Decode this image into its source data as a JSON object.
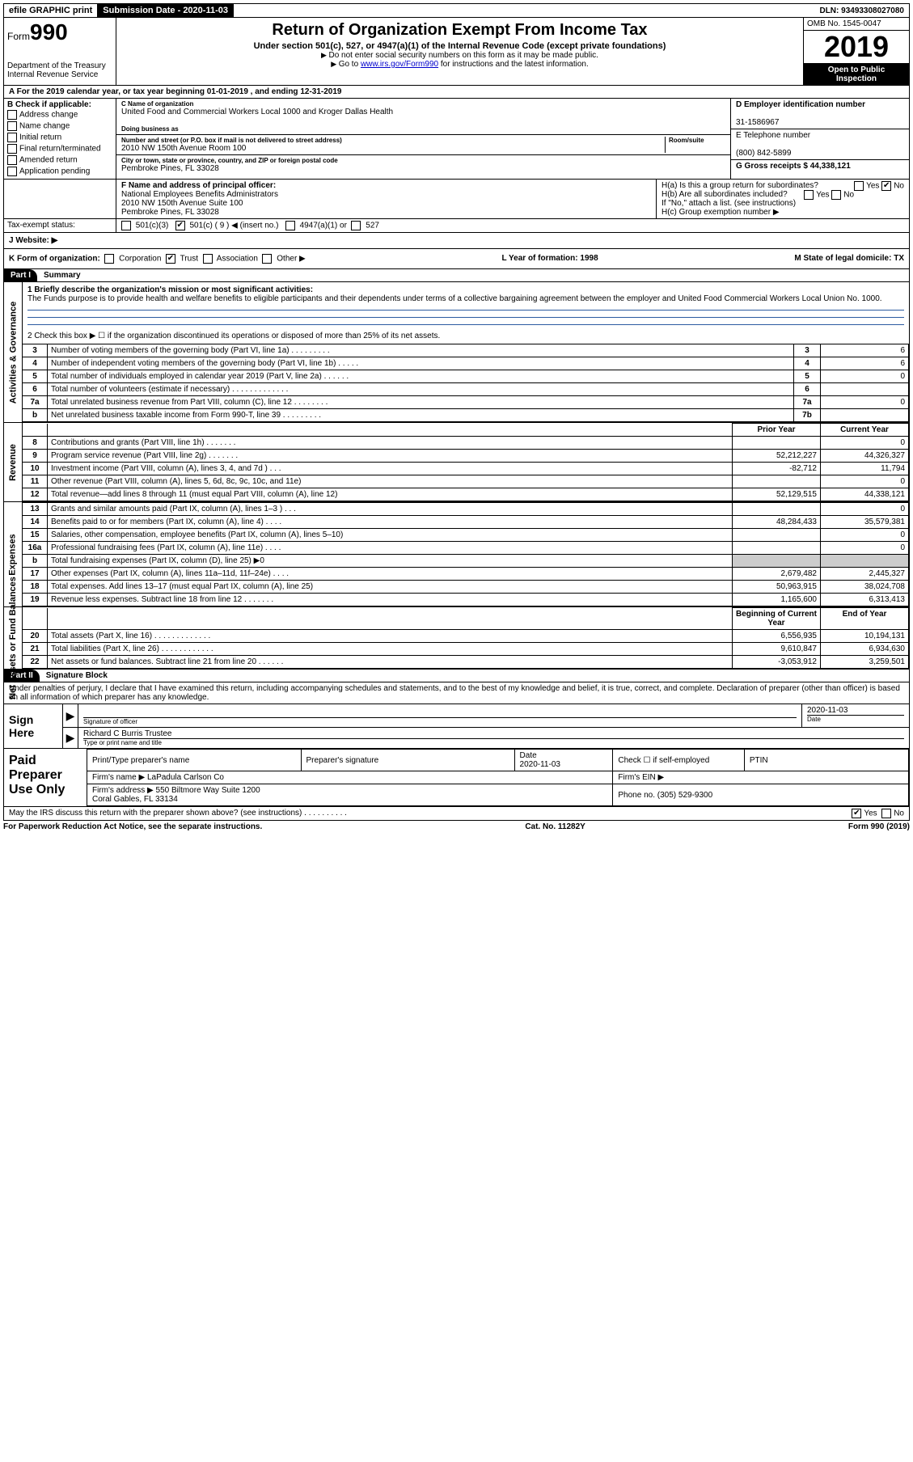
{
  "topbar": {
    "efile": "efile GRAPHIC print",
    "submission_label": "Submission Date - 2020-11-03",
    "dln": "DLN: 93493308027080"
  },
  "header": {
    "form_word": "Form",
    "form_num": "990",
    "dept": "Department of the Treasury\nInternal Revenue Service",
    "title": "Return of Organization Exempt From Income Tax",
    "subtitle": "Under section 501(c), 527, or 4947(a)(1) of the Internal Revenue Code (except private foundations)",
    "note1": "Do not enter social security numbers on this form as it may be made public.",
    "note2_pre": "Go to ",
    "note2_link": "www.irs.gov/Form990",
    "note2_post": " for instructions and the latest information.",
    "omb": "OMB No. 1545-0047",
    "year": "2019",
    "open": "Open to Public Inspection"
  },
  "row_a": "A For the 2019 calendar year, or tax year beginning 01-01-2019   , and ending 12-31-2019",
  "section_b": {
    "label": "B Check if applicable:",
    "items": [
      "Address change",
      "Name change",
      "Initial return",
      "Final return/terminated",
      "Amended return",
      "Application pending"
    ],
    "c_label": "C Name of organization",
    "c_value": "United Food and Commercial Workers Local 1000 and Kroger Dallas Health",
    "dba_label": "Doing business as",
    "addr_label": "Number and street (or P.O. box if mail is not delivered to street address)",
    "room_label": "Room/suite",
    "addr_value": "2010 NW 150th Avenue Room 100",
    "city_label": "City or town, state or province, country, and ZIP or foreign postal code",
    "city_value": "Pembroke Pines, FL  33028",
    "d_label": "D Employer identification number",
    "d_value": "31-1586967",
    "e_label": "E Telephone number",
    "e_value": "(800) 842-5899",
    "g_label": "G Gross receipts $ 44,338,121"
  },
  "section_f": {
    "f_label": "F  Name and address of principal officer:",
    "f_value": "National Employees Benefits Administrators\n2010 NW 150th Avenue Suite 100\nPembroke Pines, FL  33028",
    "tax_label": "Tax-exempt status:",
    "tax_501c3": "501(c)(3)",
    "tax_501c": "501(c) ( 9 ) ◀ (insert no.)",
    "tax_4947": "4947(a)(1) or",
    "tax_527": "527",
    "ha": "H(a)  Is this a group return for subordinates?",
    "hb": "H(b)  Are all subordinates included?",
    "hb_note": "If \"No,\" attach a list. (see instructions)",
    "hc": "H(c)  Group exemption number ▶",
    "yes": "Yes",
    "no": "No"
  },
  "row_j": "J  Website: ▶",
  "row_k": {
    "k_label": "K Form of organization:",
    "opts": [
      "Corporation",
      "Trust",
      "Association",
      "Other ▶"
    ],
    "l": "L Year of formation: 1998",
    "m": "M State of legal domicile: TX"
  },
  "part1": {
    "tab": "Part I",
    "title": "Summary",
    "line1_label": "1  Briefly describe the organization's mission or most significant activities:",
    "mission": "The Funds purpose is to provide health and welfare benefits to eligible participants and their dependents under terms of a collective bargaining agreement between the employer and United Food Commercial Workers Local Union No. 1000.",
    "line2": "2   Check this box ▶ ☐  if the organization discontinued its operations or disposed of more than 25% of its net assets."
  },
  "governance_rows": [
    {
      "n": "3",
      "d": "Number of voting members of the governing body (Part VI, line 1a)  .   .   .   .   .   .   .   .   .",
      "b": "3",
      "v": "6"
    },
    {
      "n": "4",
      "d": "Number of independent voting members of the governing body (Part VI, line 1b)  .   .   .   .   .",
      "b": "4",
      "v": "6"
    },
    {
      "n": "5",
      "d": "Total number of individuals employed in calendar year 2019 (Part V, line 2a)  .   .   .   .   .   .",
      "b": "5",
      "v": "0"
    },
    {
      "n": "6",
      "d": "Total number of volunteers (estimate if necessary)   .   .   .   .   .   .   .   .   .   .   .   .   .",
      "b": "6",
      "v": ""
    },
    {
      "n": "7a",
      "d": "Total unrelated business revenue from Part VIII, column (C), line 12  .   .   .   .   .   .   .   .",
      "b": "7a",
      "v": "0"
    },
    {
      "n": "b",
      "d": "Net unrelated business taxable income from Form 990-T, line 39   .   .   .   .   .   .   .   .   .",
      "b": "7b",
      "v": ""
    }
  ],
  "col_headers": {
    "prior": "Prior Year",
    "current": "Current Year"
  },
  "revenue_rows": [
    {
      "n": "8",
      "d": "Contributions and grants (Part VIII, line 1h)   .   .   .   .   .   .   .",
      "p": "",
      "c": "0"
    },
    {
      "n": "9",
      "d": "Program service revenue (Part VIII, line 2g)   .   .   .   .   .   .   .",
      "p": "52,212,227",
      "c": "44,326,327"
    },
    {
      "n": "10",
      "d": "Investment income (Part VIII, column (A), lines 3, 4, and 7d )   .   .   .",
      "p": "-82,712",
      "c": "11,794"
    },
    {
      "n": "11",
      "d": "Other revenue (Part VIII, column (A), lines 5, 6d, 8c, 9c, 10c, and 11e)",
      "p": "",
      "c": "0"
    },
    {
      "n": "12",
      "d": "Total revenue—add lines 8 through 11 (must equal Part VIII, column (A), line 12)",
      "p": "52,129,515",
      "c": "44,338,121"
    }
  ],
  "expense_rows": [
    {
      "n": "13",
      "d": "Grants and similar amounts paid (Part IX, column (A), lines 1–3 )  .   .   .",
      "p": "",
      "c": "0"
    },
    {
      "n": "14",
      "d": "Benefits paid to or for members (Part IX, column (A), line 4)  .   .   .   .",
      "p": "48,284,433",
      "c": "35,579,381"
    },
    {
      "n": "15",
      "d": "Salaries, other compensation, employee benefits (Part IX, column (A), lines 5–10)",
      "p": "",
      "c": "0"
    },
    {
      "n": "16a",
      "d": "Professional fundraising fees (Part IX, column (A), line 11e)  .   .   .   .",
      "p": "",
      "c": "0"
    },
    {
      "n": "b",
      "d": "Total fundraising expenses (Part IX, column (D), line 25) ▶0",
      "p": "shade",
      "c": "shade"
    },
    {
      "n": "17",
      "d": "Other expenses (Part IX, column (A), lines 11a–11d, 11f–24e)   .   .   .   .",
      "p": "2,679,482",
      "c": "2,445,327"
    },
    {
      "n": "18",
      "d": "Total expenses. Add lines 13–17 (must equal Part IX, column (A), line 25)",
      "p": "50,963,915",
      "c": "38,024,708"
    },
    {
      "n": "19",
      "d": "Revenue less expenses. Subtract line 18 from line 12 .   .   .   .   .   .   .",
      "p": "1,165,600",
      "c": "6,313,413"
    }
  ],
  "net_headers": {
    "begin": "Beginning of Current Year",
    "end": "End of Year"
  },
  "net_rows": [
    {
      "n": "20",
      "d": "Total assets (Part X, line 16)  .   .   .   .   .   .   .   .   .   .   .   .   .",
      "p": "6,556,935",
      "c": "10,194,131"
    },
    {
      "n": "21",
      "d": "Total liabilities (Part X, line 26)  .   .   .   .   .   .   .   .   .   .   .   .",
      "p": "9,610,847",
      "c": "6,934,630"
    },
    {
      "n": "22",
      "d": "Net assets or fund balances. Subtract line 21 from line 20 .   .   .   .   .   .",
      "p": "-3,053,912",
      "c": "3,259,501"
    }
  ],
  "part2": {
    "tab": "Part II",
    "title": "Signature Block",
    "decl": "Under penalties of perjury, I declare that I have examined this return, including accompanying schedules and statements, and to the best of my knowledge and belief, it is true, correct, and complete. Declaration of preparer (other than officer) is based on all information of which preparer has any knowledge."
  },
  "sign": {
    "here": "Sign Here",
    "sig_label": "Signature of officer",
    "date": "2020-11-03",
    "date_label": "Date",
    "name": "Richard C Burris  Trustee",
    "name_label": "Type or print name and title"
  },
  "prep": {
    "label": "Paid Preparer Use Only",
    "r1": [
      "Print/Type preparer's name",
      "Preparer's signature",
      "Date\n2020-11-03",
      "Check ☐ if self-employed",
      "PTIN"
    ],
    "r2_a": "Firm's name    ▶ LaPadula Carlson Co",
    "r2_b": "Firm's EIN ▶",
    "r3_a": "Firm's address ▶ 550 Biltmore Way Suite 1200\n                            Coral Gables, FL  33134",
    "r3_b": "Phone no. (305) 529-9300"
  },
  "footer": {
    "discuss": "May the IRS discuss this return with the preparer shown above? (see instructions)   .   .   .   .   .   .   .   .   .   .",
    "yes": "Yes",
    "no": "No",
    "paperwork": "For Paperwork Reduction Act Notice, see the separate instructions.",
    "cat": "Cat. No. 11282Y",
    "form": "Form 990 (2019)"
  },
  "side_labels": {
    "gov": "Activities & Governance",
    "rev": "Revenue",
    "exp": "Expenses",
    "net": "Net Assets or Fund Balances"
  }
}
